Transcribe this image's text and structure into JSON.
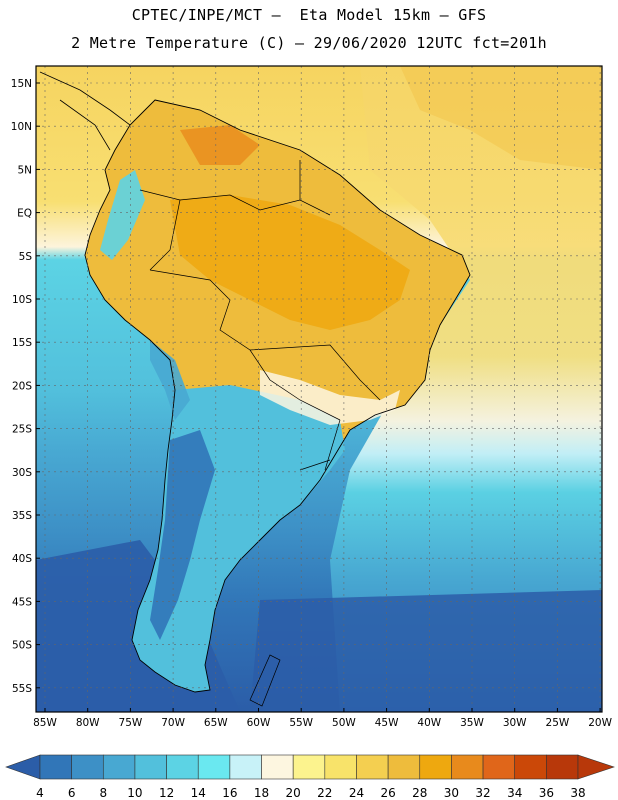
{
  "header": {
    "title_line1": "CPTEC/INPE/MCT –  Eta Model 15km – GFS",
    "title_line2": "2 Metre Temperature (C) – 29/06/2020 12UTC fct=201h"
  },
  "map": {
    "lat_labels": [
      "15N",
      "10N",
      "5N",
      "EQ",
      "5S",
      "10S",
      "15S",
      "20S",
      "25S",
      "30S",
      "35S",
      "40S",
      "45S",
      "50S",
      "55S"
    ],
    "lon_labels": [
      "85W",
      "80W",
      "75W",
      "70W",
      "65W",
      "60W",
      "55W",
      "50W",
      "45W",
      "40W",
      "35W",
      "30W",
      "25W",
      "20W"
    ]
  },
  "colorbar": {
    "labels": [
      "4",
      "6",
      "8",
      "10",
      "12",
      "14",
      "16",
      "18",
      "20",
      "22",
      "24",
      "26",
      "28",
      "30",
      "32",
      "34",
      "36",
      "38"
    ],
    "colors": [
      "#2b5da8",
      "#3176b8",
      "#3d90c6",
      "#48a8d2",
      "#52c0dc",
      "#5cd3e4",
      "#6ae8f0",
      "#c8f2f8",
      "#fdf6e0",
      "#fcf38e",
      "#f8e36a",
      "#f4cf50",
      "#eebc3c",
      "#eea80f",
      "#e88a1c",
      "#e0661a",
      "#cb4808",
      "#b8380a"
    ]
  }
}
